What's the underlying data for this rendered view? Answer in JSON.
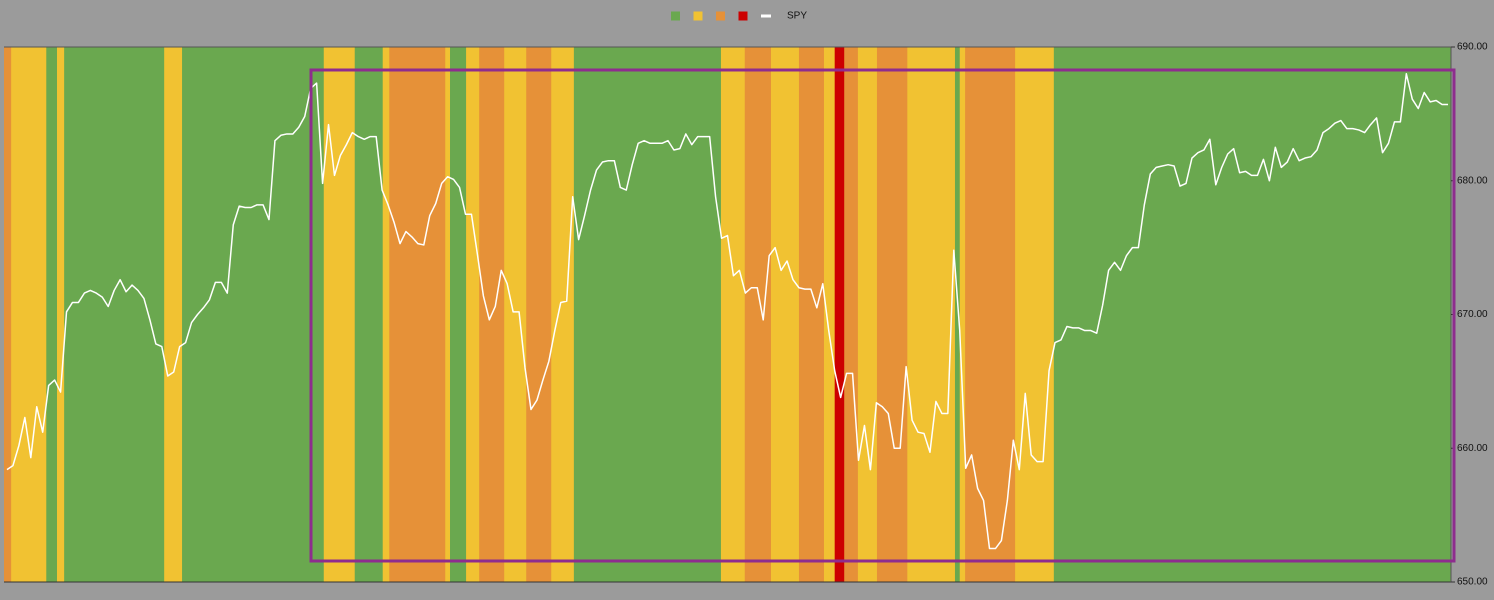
{
  "chart_data": {
    "type": "line",
    "legend": "top",
    "regimes": [
      {
        "color": "#6aa84f"
      },
      {
        "color": "#f1c232"
      },
      {
        "color": "#e69138"
      },
      {
        "color": "#cc0000"
      }
    ],
    "bands": [
      {
        "regime": 2,
        "start": -0.5,
        "end": 0.7
      },
      {
        "regime": 1,
        "start": 0.7,
        "end": 6.6
      },
      {
        "regime": 0,
        "start": 6.6,
        "end": 8.4
      },
      {
        "regime": 1,
        "start": 8.4,
        "end": 9.6
      },
      {
        "regime": 0,
        "start": 9.6,
        "end": 26.4
      },
      {
        "regime": 1,
        "start": 26.4,
        "end": 29.4
      },
      {
        "regime": 0,
        "start": 29.4,
        "end": 53.2
      },
      {
        "regime": 1,
        "start": 53.2,
        "end": 58.4
      },
      {
        "regime": 0,
        "start": 58.4,
        "end": 63.1
      },
      {
        "regime": 1,
        "start": 63.1,
        "end": 64.2
      },
      {
        "regime": 2,
        "start": 64.2,
        "end": 73.6
      },
      {
        "regime": 1,
        "start": 73.6,
        "end": 74.4
      },
      {
        "regime": 0,
        "start": 74.4,
        "end": 77.1
      },
      {
        "regime": 1,
        "start": 77.1,
        "end": 79.3
      },
      {
        "regime": 2,
        "start": 79.3,
        "end": 83.5
      },
      {
        "regime": 1,
        "start": 83.5,
        "end": 87.2
      },
      {
        "regime": 2,
        "start": 87.2,
        "end": 91.4
      },
      {
        "regime": 1,
        "start": 91.4,
        "end": 95.2
      },
      {
        "regime": 0,
        "start": 95.2,
        "end": 119.9
      },
      {
        "regime": 1,
        "start": 119.9,
        "end": 123.9
      },
      {
        "regime": 2,
        "start": 123.9,
        "end": 128.3
      },
      {
        "regime": 1,
        "start": 128.3,
        "end": 133.0
      },
      {
        "regime": 2,
        "start": 133.0,
        "end": 137.2
      },
      {
        "regime": 1,
        "start": 137.2,
        "end": 139.0
      },
      {
        "regime": 3,
        "start": 139.0,
        "end": 140.6
      },
      {
        "regime": 2,
        "start": 140.6,
        "end": 142.9
      },
      {
        "regime": 1,
        "start": 142.9,
        "end": 146.1
      },
      {
        "regime": 2,
        "start": 146.1,
        "end": 149.0
      },
      {
        "regime": 2,
        "start": 149.0,
        "end": 151.2
      },
      {
        "regime": 1,
        "start": 151.2,
        "end": 159.2
      },
      {
        "regime": 0,
        "start": 159.2,
        "end": 160.0
      },
      {
        "regime": 1,
        "start": 160.0,
        "end": 160.9
      },
      {
        "regime": 2,
        "start": 160.9,
        "end": 169.3
      },
      {
        "regime": 1,
        "start": 169.3,
        "end": 175.8
      },
      {
        "regime": 0,
        "start": 175.8,
        "end": 242.5
      }
    ],
    "series": [
      {
        "name": "SPY",
        "color": "#ffffff",
        "values": [
          658.4,
          658.7,
          660.2,
          662.3,
          659.3,
          663.1,
          661.2,
          664.7,
          665.1,
          664.2,
          670.2,
          670.9,
          670.9,
          671.6,
          671.8,
          671.6,
          671.3,
          670.6,
          671.8,
          672.6,
          671.7,
          672.2,
          671.8,
          671.2,
          669.6,
          667.8,
          667.6,
          665.4,
          665.7,
          667.6,
          667.9,
          669.4,
          670.0,
          670.5,
          671.1,
          672.4,
          672.4,
          671.6,
          676.7,
          678.1,
          678.0,
          678.0,
          678.2,
          678.2,
          677.1,
          683.0,
          683.4,
          683.5,
          683.5,
          684.0,
          684.8,
          686.9,
          687.3,
          679.8,
          684.2,
          680.4,
          681.9,
          682.7,
          683.6,
          683.3,
          683.1,
          683.3,
          683.3,
          679.3,
          678.2,
          676.9,
          675.3,
          676.2,
          675.8,
          675.3,
          675.2,
          677.4,
          678.3,
          679.8,
          680.3,
          680.1,
          679.5,
          677.5,
          677.5,
          674.5,
          671.4,
          669.6,
          670.6,
          673.3,
          672.3,
          670.2,
          670.2,
          666.0,
          662.9,
          663.6,
          665.1,
          666.5,
          668.8,
          670.9,
          671.0,
          678.8,
          675.6,
          677.4,
          679.3,
          680.8,
          681.4,
          681.5,
          681.5,
          679.5,
          679.3,
          681.2,
          682.8,
          683.0,
          682.8,
          682.8,
          682.8,
          683.0,
          682.3,
          682.4,
          683.5,
          682.7,
          683.3,
          683.3,
          683.3,
          678.8,
          675.7,
          675.9,
          672.9,
          673.3,
          671.6,
          672.0,
          672.0,
          669.6,
          674.4,
          675.0,
          673.3,
          674.0,
          672.6,
          672.0,
          671.9,
          671.9,
          670.5,
          672.3,
          668.8,
          665.8,
          663.8,
          665.6,
          665.6,
          659.1,
          661.7,
          658.4,
          663.4,
          663.1,
          662.6,
          660.0,
          660.0,
          666.1,
          662.1,
          661.2,
          661.1,
          659.7,
          663.5,
          662.6,
          662.6,
          674.8,
          668.8,
          658.5,
          659.5,
          657.0,
          656.1,
          652.5,
          652.5,
          653.1,
          656.1,
          660.6,
          658.4,
          664.1,
          659.5,
          659.0,
          659.0,
          665.8,
          667.9,
          668.1,
          669.1,
          669.0,
          669.0,
          668.8,
          668.8,
          668.6,
          670.7,
          673.3,
          673.9,
          673.3,
          674.4,
          675.0,
          675.0,
          678.2,
          680.5,
          681.0,
          681.1,
          681.2,
          681.1,
          679.6,
          679.8,
          681.7,
          682.1,
          682.3,
          683.1,
          679.7,
          681.0,
          682.0,
          682.4,
          680.6,
          680.7,
          680.4,
          680.4,
          681.6,
          680.0,
          682.5,
          681.0,
          681.4,
          682.4,
          681.5,
          681.7,
          681.8,
          682.3,
          683.6,
          683.9,
          684.3,
          684.5,
          683.9,
          683.9,
          683.8,
          683.6,
          684.2,
          684.7,
          682.1,
          682.8,
          684.4,
          684.4,
          688.0,
          686.1,
          685.4,
          686.6,
          685.9,
          686.0,
          685.7,
          685.7
        ]
      }
    ],
    "xlim": [
      -0.5,
      242.5
    ],
    "ylim": [
      650,
      690
    ],
    "yticks": [
      {
        "value": 650,
        "label": "650.00"
      },
      {
        "value": 660,
        "label": "660.00"
      },
      {
        "value": 670,
        "label": "670.00"
      },
      {
        "value": 680,
        "label": "680.00"
      },
      {
        "value": 690,
        "label": "690.00"
      }
    ]
  }
}
